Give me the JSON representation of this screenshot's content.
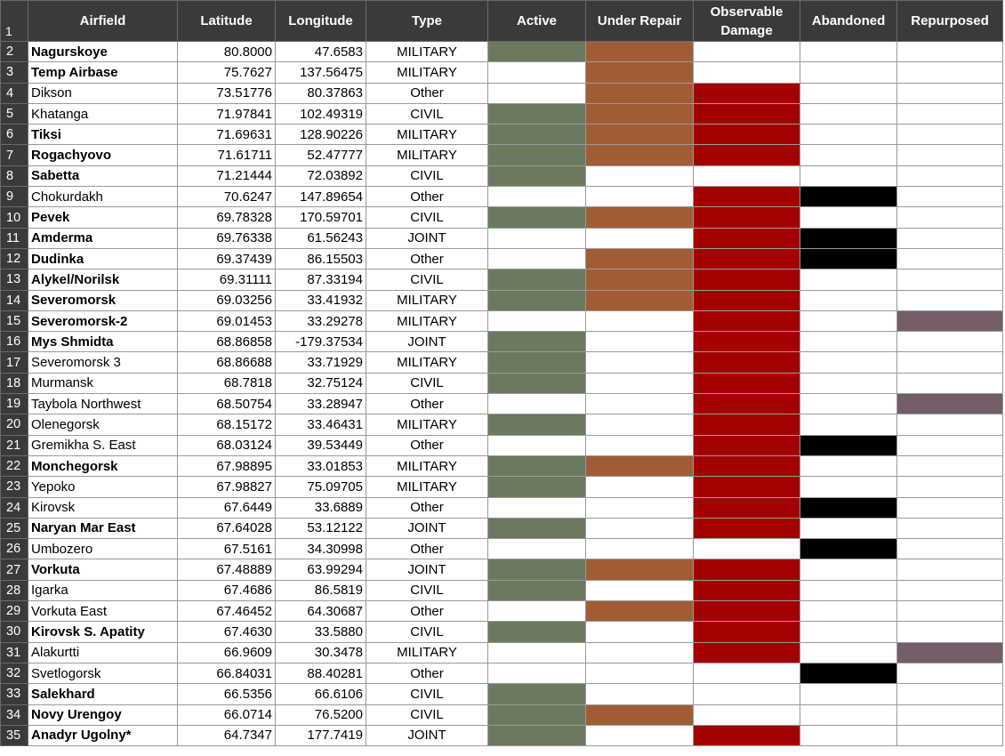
{
  "header_row_number": "1",
  "columns": [
    "Airfield",
    "Latitude",
    "Longitude",
    "Type",
    "Active",
    "Under Repair",
    "Observable Damage",
    "Abandoned",
    "Repurposed"
  ],
  "status_colors": {
    "active": "#6b7a5e",
    "repair": "#a25c35",
    "damage": "#a30202",
    "abandoned": "#000000",
    "repurposed": "#735e69"
  },
  "rows": [
    {
      "n": "2",
      "name": "Nagurskoye",
      "bold": true,
      "lat": "80.8000",
      "lon": "47.6583",
      "type": "MILITARY",
      "active": true,
      "repair": true,
      "damage": false,
      "abandoned": false,
      "repurposed": false
    },
    {
      "n": "3",
      "name": "Temp Airbase",
      "bold": true,
      "lat": "75.7627",
      "lon": "137.56475",
      "type": "MILITARY",
      "active": false,
      "repair": true,
      "damage": false,
      "abandoned": false,
      "repurposed": false
    },
    {
      "n": "4",
      "name": "Dikson",
      "bold": false,
      "lat": "73.51776",
      "lon": "80.37863",
      "type": "Other",
      "active": false,
      "repair": true,
      "damage": true,
      "abandoned": false,
      "repurposed": false
    },
    {
      "n": "5",
      "name": "Khatanga",
      "bold": false,
      "lat": "71.97841",
      "lon": "102.49319",
      "type": "CIVIL",
      "active": true,
      "repair": true,
      "damage": true,
      "abandoned": false,
      "repurposed": false
    },
    {
      "n": "6",
      "name": "Tiksi",
      "bold": true,
      "lat": "71.69631",
      "lon": "128.90226",
      "type": "MILITARY",
      "active": true,
      "repair": true,
      "damage": true,
      "abandoned": false,
      "repurposed": false
    },
    {
      "n": "7",
      "name": "Rogachyovo",
      "bold": true,
      "lat": "71.61711",
      "lon": "52.47777",
      "type": "MILITARY",
      "active": true,
      "repair": true,
      "damage": true,
      "abandoned": false,
      "repurposed": false
    },
    {
      "n": "8",
      "name": "Sabetta",
      "bold": true,
      "lat": "71.21444",
      "lon": "72.03892",
      "type": "CIVIL",
      "active": true,
      "repair": false,
      "damage": false,
      "abandoned": false,
      "repurposed": false
    },
    {
      "n": "9",
      "name": "Chokurdakh",
      "bold": false,
      "lat": "70.6247",
      "lon": "147.89654",
      "type": "Other",
      "active": false,
      "repair": false,
      "damage": true,
      "abandoned": true,
      "repurposed": false
    },
    {
      "n": "10",
      "name": "Pevek",
      "bold": true,
      "lat": "69.78328",
      "lon": "170.59701",
      "type": "CIVIL",
      "active": true,
      "repair": true,
      "damage": true,
      "abandoned": false,
      "repurposed": false
    },
    {
      "n": "11",
      "name": "Amderma",
      "bold": true,
      "lat": "69.76338",
      "lon": "61.56243",
      "type": "JOINT",
      "active": false,
      "repair": false,
      "damage": true,
      "abandoned": true,
      "repurposed": false
    },
    {
      "n": "12",
      "name": "Dudinka",
      "bold": true,
      "lat": "69.37439",
      "lon": "86.15503",
      "type": "Other",
      "active": false,
      "repair": true,
      "damage": true,
      "abandoned": true,
      "repurposed": false
    },
    {
      "n": "13",
      "name": "Alykel/Norilsk",
      "bold": true,
      "lat": "69.31111",
      "lon": "87.33194",
      "type": "CIVIL",
      "active": true,
      "repair": true,
      "damage": true,
      "abandoned": false,
      "repurposed": false
    },
    {
      "n": "14",
      "name": "Severomorsk",
      "bold": true,
      "lat": "69.03256",
      "lon": "33.41932",
      "type": "MILITARY",
      "active": true,
      "repair": true,
      "damage": true,
      "abandoned": false,
      "repurposed": false
    },
    {
      "n": "15",
      "name": "Severomorsk-2",
      "bold": true,
      "lat": "69.01453",
      "lon": "33.29278",
      "type": "MILITARY",
      "active": false,
      "repair": false,
      "damage": true,
      "abandoned": false,
      "repurposed": true
    },
    {
      "n": "16",
      "name": "Mys Shmidta",
      "bold": true,
      "lat": "68.86858",
      "lon": "-179.37534",
      "type": "JOINT",
      "active": true,
      "repair": false,
      "damage": true,
      "abandoned": false,
      "repurposed": false
    },
    {
      "n": "17",
      "name": "Severomorsk 3",
      "bold": false,
      "lat": "68.86688",
      "lon": "33.71929",
      "type": "MILITARY",
      "active": true,
      "repair": false,
      "damage": true,
      "abandoned": false,
      "repurposed": false
    },
    {
      "n": "18",
      "name": "Murmansk",
      "bold": false,
      "lat": "68.7818",
      "lon": "32.75124",
      "type": "CIVIL",
      "active": true,
      "repair": false,
      "damage": true,
      "abandoned": false,
      "repurposed": false
    },
    {
      "n": "19",
      "name": "Taybola Northwest",
      "bold": false,
      "lat": "68.50754",
      "lon": "33.28947",
      "type": "Other",
      "active": false,
      "repair": false,
      "damage": true,
      "abandoned": false,
      "repurposed": true
    },
    {
      "n": "20",
      "name": "Olenegorsk",
      "bold": false,
      "lat": "68.15172",
      "lon": "33.46431",
      "type": "MILITARY",
      "active": true,
      "repair": false,
      "damage": true,
      "abandoned": false,
      "repurposed": false
    },
    {
      "n": "21",
      "name": "Gremikha S. East",
      "bold": false,
      "lat": "68.03124",
      "lon": "39.53449",
      "type": "Other",
      "active": false,
      "repair": false,
      "damage": true,
      "abandoned": true,
      "repurposed": false
    },
    {
      "n": "22",
      "name": "Monchegorsk",
      "bold": true,
      "lat": "67.98895",
      "lon": "33.01853",
      "type": "MILITARY",
      "active": true,
      "repair": true,
      "damage": true,
      "abandoned": false,
      "repurposed": false
    },
    {
      "n": "23",
      "name": "Yepoko",
      "bold": false,
      "lat": "67.98827",
      "lon": "75.09705",
      "type": "MILITARY",
      "active": true,
      "repair": false,
      "damage": true,
      "abandoned": false,
      "repurposed": false
    },
    {
      "n": "24",
      "name": "Kirovsk",
      "bold": false,
      "lat": "67.6449",
      "lon": "33.6889",
      "type": "Other",
      "active": false,
      "repair": false,
      "damage": true,
      "abandoned": true,
      "repurposed": false
    },
    {
      "n": "25",
      "name": "Naryan Mar East",
      "bold": true,
      "lat": "67.64028",
      "lon": "53.12122",
      "type": "JOINT",
      "active": true,
      "repair": false,
      "damage": true,
      "abandoned": false,
      "repurposed": false
    },
    {
      "n": "26",
      "name": "Umbozero",
      "bold": false,
      "lat": "67.5161",
      "lon": "34.30998",
      "type": "Other",
      "active": false,
      "repair": false,
      "damage": false,
      "abandoned": true,
      "repurposed": false
    },
    {
      "n": "27",
      "name": "Vorkuta",
      "bold": true,
      "lat": "67.48889",
      "lon": "63.99294",
      "type": "JOINT",
      "active": true,
      "repair": true,
      "damage": true,
      "abandoned": false,
      "repurposed": false
    },
    {
      "n": "28",
      "name": "Igarka",
      "bold": false,
      "lat": "67.4686",
      "lon": "86.5819",
      "type": "CIVIL",
      "active": true,
      "repair": false,
      "damage": true,
      "abandoned": false,
      "repurposed": false
    },
    {
      "n": "29",
      "name": "Vorkuta East",
      "bold": false,
      "lat": "67.46452",
      "lon": "64.30687",
      "type": "Other",
      "active": false,
      "repair": true,
      "damage": true,
      "abandoned": false,
      "repurposed": false
    },
    {
      "n": "30",
      "name": "Kirovsk S. Apatity",
      "bold": true,
      "lat": "67.4630",
      "lon": "33.5880",
      "type": "CIVIL",
      "active": true,
      "repair": false,
      "damage": true,
      "abandoned": false,
      "repurposed": false
    },
    {
      "n": "31",
      "name": "Alakurtti",
      "bold": false,
      "lat": "66.9609",
      "lon": "30.3478",
      "type": "MILITARY",
      "active": false,
      "repair": false,
      "damage": true,
      "abandoned": false,
      "repurposed": true
    },
    {
      "n": "32",
      "name": "Svetlogorsk",
      "bold": false,
      "lat": "66.84031",
      "lon": "88.40281",
      "type": "Other",
      "active": false,
      "repair": false,
      "damage": false,
      "abandoned": true,
      "repurposed": false
    },
    {
      "n": "33",
      "name": "Salekhard",
      "bold": true,
      "lat": "66.5356",
      "lon": "66.6106",
      "type": "CIVIL",
      "active": true,
      "repair": false,
      "damage": false,
      "abandoned": false,
      "repurposed": false
    },
    {
      "n": "34",
      "name": "Novy Urengoy",
      "bold": true,
      "lat": "66.0714",
      "lon": "76.5200",
      "type": "CIVIL",
      "active": true,
      "repair": true,
      "damage": false,
      "abandoned": false,
      "repurposed": false
    },
    {
      "n": "35",
      "name": "Anadyr Ugolny*",
      "bold": true,
      "lat": "64.7347",
      "lon": "177.7419",
      "type": "JOINT",
      "active": true,
      "repair": false,
      "damage": true,
      "abandoned": false,
      "repurposed": false
    }
  ]
}
